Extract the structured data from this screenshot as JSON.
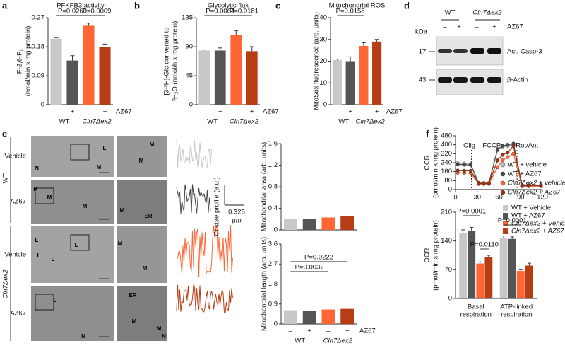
{
  "figure": {
    "panels": [
      "a",
      "b",
      "c",
      "d",
      "e",
      "f"
    ],
    "blot": {
      "genotypes": [
        "WT",
        "Cln7Δex2"
      ],
      "signs": [
        "–",
        "+",
        "–",
        "+"
      ],
      "treatment": "AZ67",
      "unit": "kDa",
      "markers": [
        "17",
        "43"
      ],
      "proteins": [
        "Act. Casp-3",
        "β-Actin"
      ]
    },
    "micrographs": {
      "genotypes": [
        "WT",
        "Cln7Δex2"
      ],
      "rows": [
        "Vehicle",
        "AZ67",
        "Vehicle",
        "AZ67"
      ],
      "labels": [
        "L",
        "N",
        "M",
        "M",
        "M",
        "P",
        "M",
        "M",
        "M",
        "ER",
        "L",
        "L",
        "L",
        "L",
        "M",
        "M",
        "L",
        "N",
        "ER",
        "M",
        "M",
        "N"
      ]
    },
    "cristae": {
      "label": "Cristae profile (a.u.)",
      "scale": [
        "0.325",
        "µm"
      ]
    }
  },
  "chart_data": [
    {
      "type": "bar",
      "title": "PFKFB3 activity",
      "ylabel": [
        "F-2,6-P₂",
        "(nmol/min x mg protein)"
      ],
      "categories": [
        "–",
        "+",
        "–",
        "+"
      ],
      "groups": [
        "WT",
        "Cln7Δex2"
      ],
      "treatment": "AZ67",
      "values": [
        0.205,
        0.137,
        0.245,
        0.18
      ],
      "errors": [
        0.003,
        0.015,
        0.008,
        0.008
      ],
      "colors": [
        "#c8c8c8",
        "#555555",
        "#ff6633",
        "#b83c14"
      ],
      "ylim": [
        0,
        0.27
      ],
      "yticks": [
        0,
        0.09,
        0.18,
        0.27
      ],
      "annotations": [
        "P=0.0260",
        "P=0.0009"
      ]
    },
    {
      "type": "bar",
      "title": "Glycolytic flux",
      "ylabel": [
        "[3-³H]-Glc converted to",
        "³H₂O (nmol/h x mg protein)"
      ],
      "categories": [
        "–",
        "+",
        "–",
        "+"
      ],
      "groups": [
        "WT",
        "Cln7Δex2"
      ],
      "treatment": "AZ67",
      "values": [
        84,
        84,
        108,
        83
      ],
      "errors": [
        1,
        4,
        7,
        7
      ],
      "colors": [
        "#c8c8c8",
        "#555555",
        "#ff6633",
        "#b83c14"
      ],
      "ylim": [
        0,
        135
      ],
      "yticks": [
        0,
        45,
        90,
        135
      ],
      "annotations": [
        "P=0.0064",
        "P=0.0181"
      ]
    },
    {
      "type": "bar",
      "title": "Mitochondrial ROS",
      "ylabel": [
        "MitoSox fluorescence (arb. units)"
      ],
      "categories": [
        "–",
        "+",
        "–",
        "+"
      ],
      "groups": [
        "WT",
        "Cln7Δex2"
      ],
      "treatment": "AZ67",
      "values": [
        20.5,
        20,
        27,
        29
      ],
      "errors": [
        0.5,
        2,
        1.5,
        1
      ],
      "colors": [
        "#c8c8c8",
        "#555555",
        "#ff6633",
        "#b83c14"
      ],
      "ylim": [
        0,
        40
      ],
      "yticks": [
        0,
        10,
        20,
        30,
        40
      ],
      "annotations": [
        "P=0.0158"
      ]
    },
    {
      "type": "bar",
      "ylabel": [
        "Mitochondrial area (arb. units)"
      ],
      "values": [
        0.2,
        0.2,
        0.23,
        0.25
      ],
      "colors": [
        "#c8c8c8",
        "#555555",
        "#ff6633",
        "#b83c14"
      ],
      "ylim": [
        0,
        1.6
      ],
      "yticks": [
        0,
        0.4,
        0.8,
        1.2,
        1.6
      ]
    },
    {
      "type": "bar",
      "ylabel": [
        "Mitochondrial length (arb. units)"
      ],
      "categories": [
        "–",
        "+",
        "–",
        "+"
      ],
      "groups": [
        "WT",
        "Cln7Δex2"
      ],
      "treatment": "AZ67",
      "values": [
        0.62,
        0.6,
        0.65,
        0.68
      ],
      "colors": [
        "#c8c8c8",
        "#555555",
        "#ff6633",
        "#b83c14"
      ],
      "ylim": [
        0,
        3.6
      ],
      "yticks": [
        0,
        0.9,
        1.8,
        2.7,
        3.6
      ],
      "annotations": [
        "P=0.0032",
        "P=0.0222"
      ]
    },
    {
      "type": "line",
      "ylabel": [
        "OCR",
        "(pmol/min x mg protein)"
      ],
      "annotations": [
        "Olig",
        "FCCP",
        "Rot/Ant"
      ],
      "x": [
        3,
        12,
        21,
        32,
        39,
        46,
        58,
        65,
        72,
        80,
        92,
        101,
        118
      ],
      "series": [
        {
          "name": "WT + vehicle",
          "color": "#bdbdbd",
          "values": [
            235,
            232,
            230,
            60,
            58,
            58,
            350,
            380,
            390,
            400,
            40,
            40,
            40
          ]
        },
        {
          "name": "WT + AZ67",
          "color": "#4a4a4a",
          "values": [
            225,
            222,
            220,
            55,
            55,
            55,
            360,
            390,
            400,
            410,
            35,
            35,
            35
          ]
        },
        {
          "name": "Cln7Δex2 + vehicle",
          "color": "#ff6633",
          "values": [
            150,
            148,
            148,
            50,
            50,
            50,
            200,
            260,
            290,
            320,
            30,
            30,
            30
          ]
        },
        {
          "name": "Cln7Δex2 + AZ67",
          "color": "#a0300f",
          "values": [
            170,
            168,
            168,
            55,
            55,
            55,
            260,
            310,
            330,
            390,
            35,
            35,
            35
          ]
        }
      ],
      "xlim": [
        0,
        120
      ],
      "xticks": [
        0,
        30,
        60,
        90,
        120
      ],
      "ylim": [
        0,
        480
      ],
      "yticks": [
        0,
        80,
        160,
        240,
        320,
        400,
        480
      ]
    },
    {
      "type": "bar",
      "ylabel": [
        "OCR",
        "(pmol/min x mg protein)"
      ],
      "categories": [
        [
          "Basal",
          "respiration"
        ],
        [
          "ATP-linked",
          "respiration"
        ]
      ],
      "series": [
        {
          "name": "WT + Vehicle",
          "color": "#c8c8c8",
          "values": [
            160,
            148
          ],
          "errors": [
            7,
            4
          ]
        },
        {
          "name": "WT + AZ67",
          "color": "#555555",
          "values": [
            165,
            145
          ],
          "errors": [
            8,
            5
          ]
        },
        {
          "name": "Cln7Δex2 + Vehicle",
          "color": "#ff6633",
          "values": [
            85,
            67
          ],
          "errors": [
            4,
            3
          ]
        },
        {
          "name": "Cln7Δex2 + AZ67",
          "color": "#b83c14",
          "values": [
            100,
            80
          ],
          "errors": [
            5,
            6
          ]
        }
      ],
      "ylim": [
        0,
        210
      ],
      "yticks": [
        0,
        70,
        140,
        210
      ],
      "annotations": [
        "P=0.0001",
        "P=0.0110",
        "P=0.0001"
      ]
    }
  ]
}
